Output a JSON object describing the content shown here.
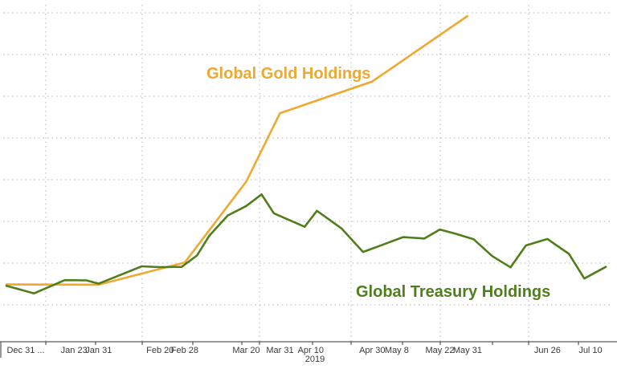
{
  "chart_data": {
    "type": "line",
    "title": "",
    "xlabel": "2019",
    "ylabel": "",
    "grid": true,
    "x_tick_labels": [
      "Dec 31 ...",
      "Jan 23",
      "Jan 31",
      "Feb 20",
      "Feb 28",
      "Mar 20",
      "Mar 31",
      "Apr 10",
      "Apr 30",
      "May 8",
      "May 22",
      "May 31",
      "Jun 26",
      "Jul 10"
    ],
    "series": [
      {
        "name": "Global Gold Holdings",
        "color": "#f0a830",
        "points": [
          [
            "Dec 31",
            0.5
          ],
          [
            "Jan 31",
            0.4
          ],
          [
            "Feb 28",
            8.6
          ],
          [
            "Mar 20",
            38.5
          ],
          [
            "Mar 31",
            63.8
          ],
          [
            "Apr 30",
            75.5
          ],
          [
            "May 31",
            99.7
          ]
        ]
      },
      {
        "name": "Global Treasury Holdings",
        "color": "#4e7f1a",
        "points": [
          [
            "Dec 31",
            0.0
          ],
          [
            "Jan 10",
            -2.8
          ],
          [
            "Jan 20",
            2.1
          ],
          [
            "Jan 27",
            2.0
          ],
          [
            "Jan 31",
            0.8
          ],
          [
            "Feb 7",
            4.0
          ],
          [
            "Feb 14",
            7.2
          ],
          [
            "Feb 20",
            6.9
          ],
          [
            "Feb 27",
            7.0
          ],
          [
            "Mar 4",
            11.2
          ],
          [
            "Mar 8",
            18.5
          ],
          [
            "Mar 14",
            26.0
          ],
          [
            "Mar 20",
            29.5
          ],
          [
            "Mar 25",
            33.8
          ],
          [
            "Mar 29",
            26.8
          ],
          [
            "Apr 8",
            21.8
          ],
          [
            "Apr 12",
            27.7
          ],
          [
            "Apr 20",
            21.2
          ],
          [
            "Apr 27",
            12.5
          ],
          [
            "May 3",
            15.0
          ],
          [
            "May 10",
            18.0
          ],
          [
            "May 17",
            17.5
          ],
          [
            "May 22",
            20.8
          ],
          [
            "May 27",
            19.3
          ],
          [
            "Jun 2",
            17.2
          ],
          [
            "Jun 8",
            11.0
          ],
          [
            "Jun 14",
            6.8
          ],
          [
            "Jun 19",
            14.9
          ],
          [
            "Jun 26",
            17.3
          ],
          [
            "Jul 3",
            11.8
          ],
          [
            "Jul 8",
            2.7
          ],
          [
            "Jul 15",
            7.0
          ]
        ]
      }
    ]
  }
}
